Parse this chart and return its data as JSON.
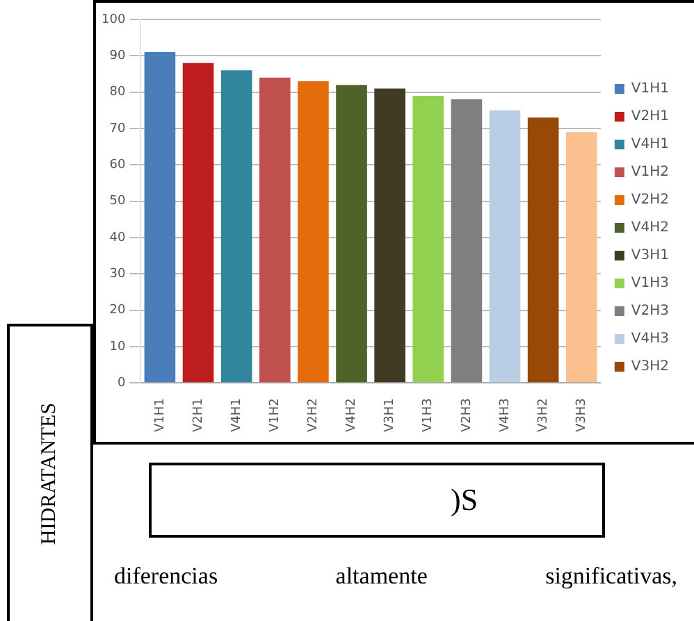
{
  "chart_data": {
    "type": "bar",
    "categories": [
      "V1H1",
      "V2H1",
      "V4H1",
      "V1H2",
      "V2H2",
      "V4H2",
      "V3H1",
      "V1H3",
      "V2H3",
      "V4H3",
      "V3H2",
      "V3H3"
    ],
    "series": [
      {
        "name": "V1H1",
        "color": "#4a7ebb",
        "values": [
          91,
          null,
          null,
          null,
          null,
          null,
          null,
          null,
          null,
          null,
          null,
          null
        ]
      },
      {
        "name": "V2H1",
        "color": "#be1e1e",
        "values": [
          null,
          88,
          null,
          null,
          null,
          null,
          null,
          null,
          null,
          null,
          null,
          null
        ]
      },
      {
        "name": "V4H1",
        "color": "#31859c",
        "values": [
          null,
          null,
          86,
          null,
          null,
          null,
          null,
          null,
          null,
          null,
          null,
          null
        ]
      },
      {
        "name": "V1H2",
        "color": "#c0504d",
        "values": [
          null,
          null,
          null,
          84,
          null,
          null,
          null,
          null,
          null,
          null,
          null,
          null
        ]
      },
      {
        "name": "V2H2",
        "color": "#e46c0a",
        "values": [
          null,
          null,
          null,
          null,
          83,
          null,
          null,
          null,
          null,
          null,
          null,
          null
        ]
      },
      {
        "name": "V4H2",
        "color": "#4f6228",
        "values": [
          null,
          null,
          null,
          null,
          null,
          82,
          null,
          null,
          null,
          null,
          null,
          null
        ]
      },
      {
        "name": "V3H1",
        "color": "#403b22",
        "values": [
          null,
          null,
          null,
          null,
          null,
          null,
          81,
          null,
          null,
          null,
          null,
          null
        ]
      },
      {
        "name": "V1H3",
        "color": "#92d050",
        "values": [
          null,
          null,
          null,
          null,
          null,
          null,
          null,
          79,
          null,
          null,
          null,
          null
        ]
      },
      {
        "name": "V2H3",
        "color": "#7f7f7f",
        "values": [
          null,
          null,
          null,
          null,
          null,
          null,
          null,
          null,
          78,
          null,
          null,
          null
        ]
      },
      {
        "name": "V4H3",
        "color": "#b9cde5",
        "values": [
          null,
          null,
          null,
          null,
          null,
          null,
          null,
          null,
          null,
          75,
          null,
          null
        ]
      },
      {
        "name": "V3H2",
        "color": "#984807",
        "values": [
          null,
          null,
          null,
          null,
          null,
          null,
          null,
          null,
          null,
          null,
          73,
          null
        ]
      },
      {
        "color": "#fac090",
        "values": [
          null,
          null,
          null,
          null,
          null,
          null,
          null,
          null,
          null,
          null,
          null,
          69
        ]
      }
    ],
    "ylim": [
      0,
      100
    ],
    "yticks": [
      0,
      10,
      20,
      30,
      40,
      50,
      60,
      70,
      80,
      90,
      100
    ],
    "grid": "y",
    "legend": "right",
    "annotations": [
      "HIDRATANTES",
      ")S",
      "diferencias altamente significativas,"
    ]
  }
}
